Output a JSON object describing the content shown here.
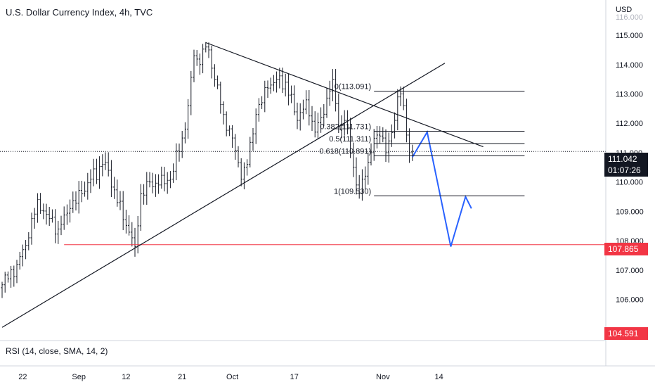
{
  "header": {
    "title": "U.S. Dollar Currency Index, 4h, TVC"
  },
  "rsi_label": "RSI (14, close, SMA, 14, 2)",
  "axis": {
    "currency": "USD",
    "truncated_top_label": "116.000"
  },
  "badges": {
    "current_price": "111.042",
    "countdown": "01:07:26",
    "support_price": "107.865",
    "low_price": "104.591"
  },
  "colors": {
    "candle": "#131722",
    "trendline": "#131722",
    "support": "#f23645",
    "projection": "#2962ff",
    "price_badge": "#131722",
    "support_badge": "#f23645"
  },
  "chart_data": {
    "type": "candlestick",
    "title": "U.S. Dollar Currency Index, 4h, TVC",
    "ylim": [
      104.6,
      116.2
    ],
    "y_ticks": [
      106.0,
      107.0,
      108.0,
      109.0,
      110.0,
      111.0,
      112.0,
      113.0,
      114.0,
      115.0
    ],
    "y_tick_labels": [
      "106.000",
      "107.000",
      "108.000",
      "109.000",
      "110.000",
      "111.000",
      "112.000",
      "113.000",
      "114.000",
      "115.000"
    ],
    "x_ticks": [
      "22",
      "Sep",
      "12",
      "21",
      "Oct",
      "17",
      "Nov",
      "14"
    ],
    "x_tick_bar_index": [
      7,
      26,
      42,
      61,
      78,
      99,
      129,
      148
    ],
    "bar_count": 165,
    "anchors": [
      [
        0,
        106.5
      ],
      [
        5,
        107.2
      ],
      [
        9,
        108.1
      ],
      [
        12,
        109.4
      ],
      [
        15,
        108.9
      ],
      [
        19,
        108.4
      ],
      [
        23,
        109.1
      ],
      [
        27,
        109.6
      ],
      [
        30,
        110.1
      ],
      [
        34,
        110.6
      ],
      [
        36,
        110.4
      ],
      [
        39,
        109.3
      ],
      [
        44,
        108.1
      ],
      [
        45,
        107.8
      ],
      [
        47,
        109.6
      ],
      [
        50,
        110.0
      ],
      [
        53,
        109.9
      ],
      [
        57,
        110.1
      ],
      [
        61,
        111.5
      ],
      [
        63,
        112.6
      ],
      [
        65,
        114.3
      ],
      [
        67,
        114.0
      ],
      [
        69,
        114.6
      ],
      [
        70,
        114.5
      ],
      [
        72,
        113.5
      ],
      [
        75,
        112.3
      ],
      [
        78,
        111.5
      ],
      [
        81,
        110.1
      ],
      [
        83,
        110.6
      ],
      [
        86,
        112.3
      ],
      [
        90,
        113.2
      ],
      [
        93,
        113.5
      ],
      [
        96,
        113.4
      ],
      [
        100,
        112.1
      ],
      [
        103,
        112.8
      ],
      [
        106,
        111.7
      ],
      [
        108,
        112.2
      ],
      [
        111,
        113.1
      ],
      [
        112,
        113.5
      ],
      [
        114,
        111.8
      ],
      [
        116,
        112.1
      ],
      [
        118,
        111.0
      ],
      [
        119,
        110.5
      ],
      [
        120,
        109.9
      ],
      [
        121,
        109.6
      ],
      [
        123,
        110.2
      ],
      [
        125,
        111.0
      ],
      [
        127,
        111.6
      ],
      [
        129,
        111.5
      ],
      [
        130,
        111.0
      ],
      [
        131,
        111.4
      ],
      [
        133,
        112.1
      ],
      [
        134,
        112.9
      ],
      [
        135,
        113.0
      ],
      [
        136,
        112.6
      ],
      [
        137,
        111.6
      ],
      [
        138,
        111.0
      ],
      [
        139,
        111.05
      ]
    ],
    "fibonacci": [
      {
        "label": "0(113.091)",
        "value": 113.091
      },
      {
        "label": "0.382(111.731)",
        "value": 111.731
      },
      {
        "label": "0.5(111.311)",
        "value": 111.311
      },
      {
        "label": "0.618(110.891)",
        "value": 110.891
      },
      {
        "label": "1(109.530)",
        "value": 109.53
      }
    ],
    "horizontal_lines": [
      {
        "name": "support",
        "value": 107.865
      },
      {
        "name": "last-price",
        "value": 111.042
      }
    ],
    "trendlines": [
      {
        "name": "descending-resistance",
        "from": [
          69,
          114.75
        ],
        "to": [
          163,
          111.2
        ]
      },
      {
        "name": "ascending-support",
        "from": [
          0,
          105.05
        ],
        "to": [
          150,
          114.05
        ]
      }
    ],
    "projection_path": [
      [
        139,
        110.85
      ],
      [
        144,
        111.7
      ],
      [
        152,
        107.8
      ],
      [
        157,
        109.5
      ],
      [
        159,
        109.1
      ]
    ]
  }
}
